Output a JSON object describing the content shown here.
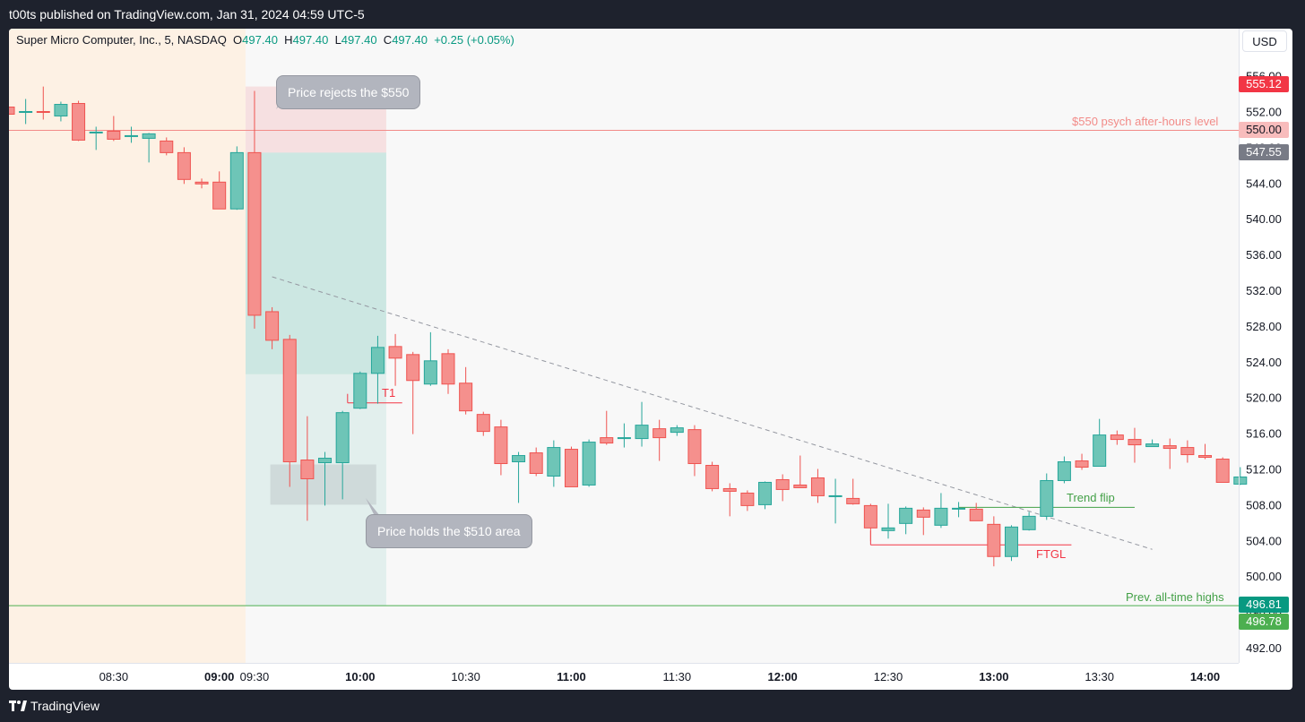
{
  "header": {
    "published": "t00ts published on TradingView.com, Jan 31, 2024 04:59 UTC-5"
  },
  "footer": {
    "brand": "TradingView"
  },
  "toolbar": {
    "currency": "USD"
  },
  "legend": {
    "symbol": "Super Micro Computer, Inc., 5, NASDAQ",
    "o_label": "O",
    "o": "497.40",
    "h_label": "H",
    "h": "497.40",
    "l_label": "L",
    "l": "497.40",
    "c_label": "C",
    "c": "497.40",
    "change": "+0.25 (+0.05%)"
  },
  "annotations": {
    "rejects": "Price rejects the $550",
    "holds": "Price holds the $510 area",
    "t1": "T1",
    "ftgl": "FTGL",
    "trend_flip": "Trend flip",
    "psych_level": "$550 psych after-hours level",
    "prev_ath": "Prev. all-time highs"
  },
  "price_labels": {
    "current": "555.12",
    "psych": "550.00",
    "gray": "547.55",
    "ath_top": "496.81",
    "ath_bottom": "496.78"
  },
  "colors": {
    "up": "#26a69a",
    "down": "#ef5350",
    "premarket_bg": "#fdf1e4",
    "chart_bg": "#f8f8f8",
    "psych_line": "#f28b88",
    "ath_line": "#4caf50",
    "current_label": "#f23645",
    "gray_label": "#787b86"
  },
  "chart_data": {
    "type": "candlestick",
    "symbol": "Super Micro Computer, Inc., 5, NASDAQ",
    "interval_minutes": 5,
    "ylim": [
      489,
      557
    ],
    "y_ticks": [
      492,
      496,
      500,
      504,
      508,
      512,
      516,
      520,
      524,
      528,
      532,
      536,
      540,
      544,
      548,
      552,
      556
    ],
    "y_tick_labels": [
      "492.00",
      "496.00",
      "500.00",
      "504.00",
      "508.00",
      "512.00",
      "516.00",
      "520.00",
      "524.00",
      "528.00",
      "532.00",
      "536.00",
      "540.00",
      "544.00",
      "548.00",
      "552.00",
      "556.00"
    ],
    "x_ticks": [
      {
        "label": "08:30",
        "t": "08:30",
        "bold": false
      },
      {
        "label": "09:00",
        "t": "09:00",
        "bold": true
      },
      {
        "label": "09:30",
        "t": "09:30",
        "bold": false
      },
      {
        "label": "10:00",
        "t": "10:00",
        "bold": true
      },
      {
        "label": "10:30",
        "t": "10:30",
        "bold": false
      },
      {
        "label": "11:00",
        "t": "11:00",
        "bold": true
      },
      {
        "label": "11:30",
        "t": "11:30",
        "bold": false
      },
      {
        "label": "12:00",
        "t": "12:00",
        "bold": true
      },
      {
        "label": "12:30",
        "t": "12:30",
        "bold": false
      },
      {
        "label": "13:00",
        "t": "13:00",
        "bold": true
      },
      {
        "label": "13:30",
        "t": "13:30",
        "bold": false
      },
      {
        "label": "14:00",
        "t": "14:00",
        "bold": true
      }
    ],
    "candles": [
      {
        "t": "08:00",
        "o": 552.6,
        "h": 555.0,
        "l": 550.6,
        "c": 551.8
      },
      {
        "t": "08:05",
        "o": 552.0,
        "h": 553.5,
        "l": 550.7,
        "c": 552.1
      },
      {
        "t": "08:10",
        "o": 552.1,
        "h": 554.9,
        "l": 551.2,
        "c": 552.0
      },
      {
        "t": "08:15",
        "o": 551.6,
        "h": 553.2,
        "l": 551.0,
        "c": 552.9
      },
      {
        "t": "08:20",
        "o": 553.0,
        "h": 553.3,
        "l": 548.8,
        "c": 548.9
      },
      {
        "t": "08:25",
        "o": 549.8,
        "h": 550.4,
        "l": 547.8,
        "c": 549.8
      },
      {
        "t": "08:30",
        "o": 549.9,
        "h": 551.6,
        "l": 548.8,
        "c": 549.0
      },
      {
        "t": "08:35",
        "o": 549.4,
        "h": 550.4,
        "l": 548.6,
        "c": 549.4
      },
      {
        "t": "08:40",
        "o": 549.1,
        "h": 549.7,
        "l": 546.4,
        "c": 549.6
      },
      {
        "t": "08:45",
        "o": 548.8,
        "h": 549.2,
        "l": 547.2,
        "c": 547.5
      },
      {
        "t": "08:50",
        "o": 547.5,
        "h": 548.1,
        "l": 544.0,
        "c": 544.5
      },
      {
        "t": "08:55",
        "o": 544.2,
        "h": 544.6,
        "l": 543.5,
        "c": 544.0
      },
      {
        "t": "09:00",
        "o": 544.2,
        "h": 545.4,
        "l": 541.2,
        "c": 541.2
      },
      {
        "t": "09:05",
        "o": 541.2,
        "h": 548.2,
        "l": 541.1,
        "c": 547.5
      },
      {
        "t": "09:30",
        "o": 547.5,
        "h": 554.4,
        "l": 527.8,
        "c": 529.3
      },
      {
        "t": "09:35",
        "o": 529.7,
        "h": 530.2,
        "l": 525.5,
        "c": 526.5
      },
      {
        "t": "09:40",
        "o": 526.6,
        "h": 527.1,
        "l": 510.1,
        "c": 512.9
      },
      {
        "t": "09:45",
        "o": 513.1,
        "h": 518.0,
        "l": 506.3,
        "c": 511.0
      },
      {
        "t": "09:50",
        "o": 512.8,
        "h": 514.0,
        "l": 508.0,
        "c": 513.3
      },
      {
        "t": "09:55",
        "o": 512.8,
        "h": 518.6,
        "l": 508.7,
        "c": 518.4
      },
      {
        "t": "10:00",
        "o": 518.9,
        "h": 523.0,
        "l": 518.8,
        "c": 522.8
      },
      {
        "t": "10:05",
        "o": 522.8,
        "h": 527.0,
        "l": 519.4,
        "c": 525.7
      },
      {
        "t": "10:10",
        "o": 525.8,
        "h": 527.2,
        "l": 521.4,
        "c": 524.5
      },
      {
        "t": "10:15",
        "o": 524.9,
        "h": 525.2,
        "l": 516.0,
        "c": 522.0
      },
      {
        "t": "10:20",
        "o": 521.6,
        "h": 527.4,
        "l": 521.4,
        "c": 524.2
      },
      {
        "t": "10:25",
        "o": 525.0,
        "h": 525.5,
        "l": 520.5,
        "c": 521.6
      },
      {
        "t": "10:30",
        "o": 521.7,
        "h": 523.5,
        "l": 518.2,
        "c": 518.6
      },
      {
        "t": "10:35",
        "o": 518.2,
        "h": 518.5,
        "l": 515.8,
        "c": 516.3
      },
      {
        "t": "10:40",
        "o": 516.8,
        "h": 517.6,
        "l": 511.4,
        "c": 512.7
      },
      {
        "t": "10:45",
        "o": 512.9,
        "h": 514.0,
        "l": 508.3,
        "c": 513.6
      },
      {
        "t": "10:50",
        "o": 513.9,
        "h": 514.5,
        "l": 511.3,
        "c": 511.6
      },
      {
        "t": "10:55",
        "o": 511.3,
        "h": 515.3,
        "l": 510.1,
        "c": 514.5
      },
      {
        "t": "11:00",
        "o": 514.3,
        "h": 514.6,
        "l": 510.1,
        "c": 510.1
      },
      {
        "t": "11:05",
        "o": 510.3,
        "h": 515.4,
        "l": 510.1,
        "c": 515.1
      },
      {
        "t": "11:10",
        "o": 515.6,
        "h": 518.6,
        "l": 514.8,
        "c": 515.0
      },
      {
        "t": "11:15",
        "o": 515.6,
        "h": 517.2,
        "l": 514.5,
        "c": 515.6
      },
      {
        "t": "11:20",
        "o": 515.5,
        "h": 519.6,
        "l": 514.6,
        "c": 517.0
      },
      {
        "t": "11:25",
        "o": 516.6,
        "h": 517.6,
        "l": 513.0,
        "c": 515.6
      },
      {
        "t": "11:30",
        "o": 516.2,
        "h": 517.0,
        "l": 515.8,
        "c": 516.7
      },
      {
        "t": "11:35",
        "o": 516.5,
        "h": 517.0,
        "l": 511.3,
        "c": 512.7
      },
      {
        "t": "11:40",
        "o": 512.5,
        "h": 512.9,
        "l": 509.6,
        "c": 509.9
      },
      {
        "t": "11:45",
        "o": 509.9,
        "h": 510.5,
        "l": 506.8,
        "c": 509.6
      },
      {
        "t": "11:50",
        "o": 509.4,
        "h": 509.7,
        "l": 507.4,
        "c": 508.0
      },
      {
        "t": "11:55",
        "o": 508.1,
        "h": 510.7,
        "l": 507.6,
        "c": 510.6
      },
      {
        "t": "12:00",
        "o": 510.9,
        "h": 511.5,
        "l": 508.5,
        "c": 509.8
      },
      {
        "t": "12:05",
        "o": 510.3,
        "h": 513.6,
        "l": 510.3,
        "c": 510.0
      },
      {
        "t": "12:10",
        "o": 511.1,
        "h": 512.1,
        "l": 508.3,
        "c": 509.1
      },
      {
        "t": "12:15",
        "o": 509.1,
        "h": 511.0,
        "l": 506.0,
        "c": 509.1
      },
      {
        "t": "12:20",
        "o": 508.8,
        "h": 511.0,
        "l": 508.1,
        "c": 508.2
      },
      {
        "t": "12:25",
        "o": 508.0,
        "h": 508.2,
        "l": 504.0,
        "c": 505.5
      },
      {
        "t": "12:30",
        "o": 505.2,
        "h": 508.2,
        "l": 504.3,
        "c": 505.5
      },
      {
        "t": "12:35",
        "o": 506.0,
        "h": 507.9,
        "l": 504.8,
        "c": 507.7
      },
      {
        "t": "12:40",
        "o": 507.5,
        "h": 507.8,
        "l": 504.7,
        "c": 506.7
      },
      {
        "t": "12:45",
        "o": 505.8,
        "h": 509.4,
        "l": 505.5,
        "c": 507.7
      },
      {
        "t": "12:50",
        "o": 507.6,
        "h": 508.4,
        "l": 506.7,
        "c": 507.7
      },
      {
        "t": "12:55",
        "o": 507.6,
        "h": 508.3,
        "l": 506.3,
        "c": 506.3
      },
      {
        "t": "13:00",
        "o": 505.9,
        "h": 506.8,
        "l": 501.2,
        "c": 502.3
      },
      {
        "t": "13:05",
        "o": 502.3,
        "h": 505.8,
        "l": 501.8,
        "c": 505.6
      },
      {
        "t": "13:10",
        "o": 505.3,
        "h": 507.3,
        "l": 505.2,
        "c": 506.8
      },
      {
        "t": "13:15",
        "o": 506.8,
        "h": 511.6,
        "l": 506.4,
        "c": 510.8
      },
      {
        "t": "13:20",
        "o": 510.8,
        "h": 513.5,
        "l": 510.5,
        "c": 512.9
      },
      {
        "t": "13:25",
        "o": 513.0,
        "h": 513.8,
        "l": 512.0,
        "c": 512.3
      },
      {
        "t": "13:30",
        "o": 512.4,
        "h": 517.7,
        "l": 512.4,
        "c": 515.9
      },
      {
        "t": "13:35",
        "o": 515.9,
        "h": 516.4,
        "l": 514.8,
        "c": 515.4
      },
      {
        "t": "13:40",
        "o": 515.4,
        "h": 516.7,
        "l": 512.8,
        "c": 514.8
      },
      {
        "t": "13:45",
        "o": 514.6,
        "h": 515.4,
        "l": 514.7,
        "c": 514.9
      },
      {
        "t": "13:50",
        "o": 514.7,
        "h": 515.5,
        "l": 512.1,
        "c": 514.4
      },
      {
        "t": "13:55",
        "o": 514.5,
        "h": 515.3,
        "l": 512.8,
        "c": 513.7
      },
      {
        "t": "14:00",
        "o": 513.6,
        "h": 514.9,
        "l": 513.2,
        "c": 513.4
      },
      {
        "t": "14:05",
        "o": 513.2,
        "h": 513.4,
        "l": 510.6,
        "c": 510.6
      },
      {
        "t": "14:10",
        "o": 510.4,
        "h": 512.3,
        "l": 510.3,
        "c": 511.2
      }
    ],
    "levels": [
      {
        "name": "$550 psych after-hours level",
        "value": 550.0
      },
      {
        "name": "Prev. all-time highs",
        "value": 496.8
      }
    ],
    "premarket_shading": {
      "from": "08:00",
      "to": "09:30"
    },
    "position": {
      "start": "09:30",
      "end": "10:05",
      "entry": 547.5,
      "stop": 554.9,
      "target": 522.7,
      "target_end": 496.8
    },
    "trendline": {
      "from_t": "09:35",
      "from_p": 533.6,
      "to_t": "13:45",
      "to_p": 503.1
    },
    "hold_zone": {
      "from_t": "09:35",
      "to_t": "10:00",
      "top": 512.6,
      "bottom": 508.1
    },
    "t1_line": {
      "from_t": "10:00",
      "to_t": "10:15",
      "p": 519.5
    },
    "ftgl_line": {
      "from_t": "12:25",
      "to_t": "13:20",
      "p": 503.6
    },
    "trend_flip_line": {
      "from_t": "12:50",
      "to_t": "13:40",
      "p": 507.8
    }
  }
}
